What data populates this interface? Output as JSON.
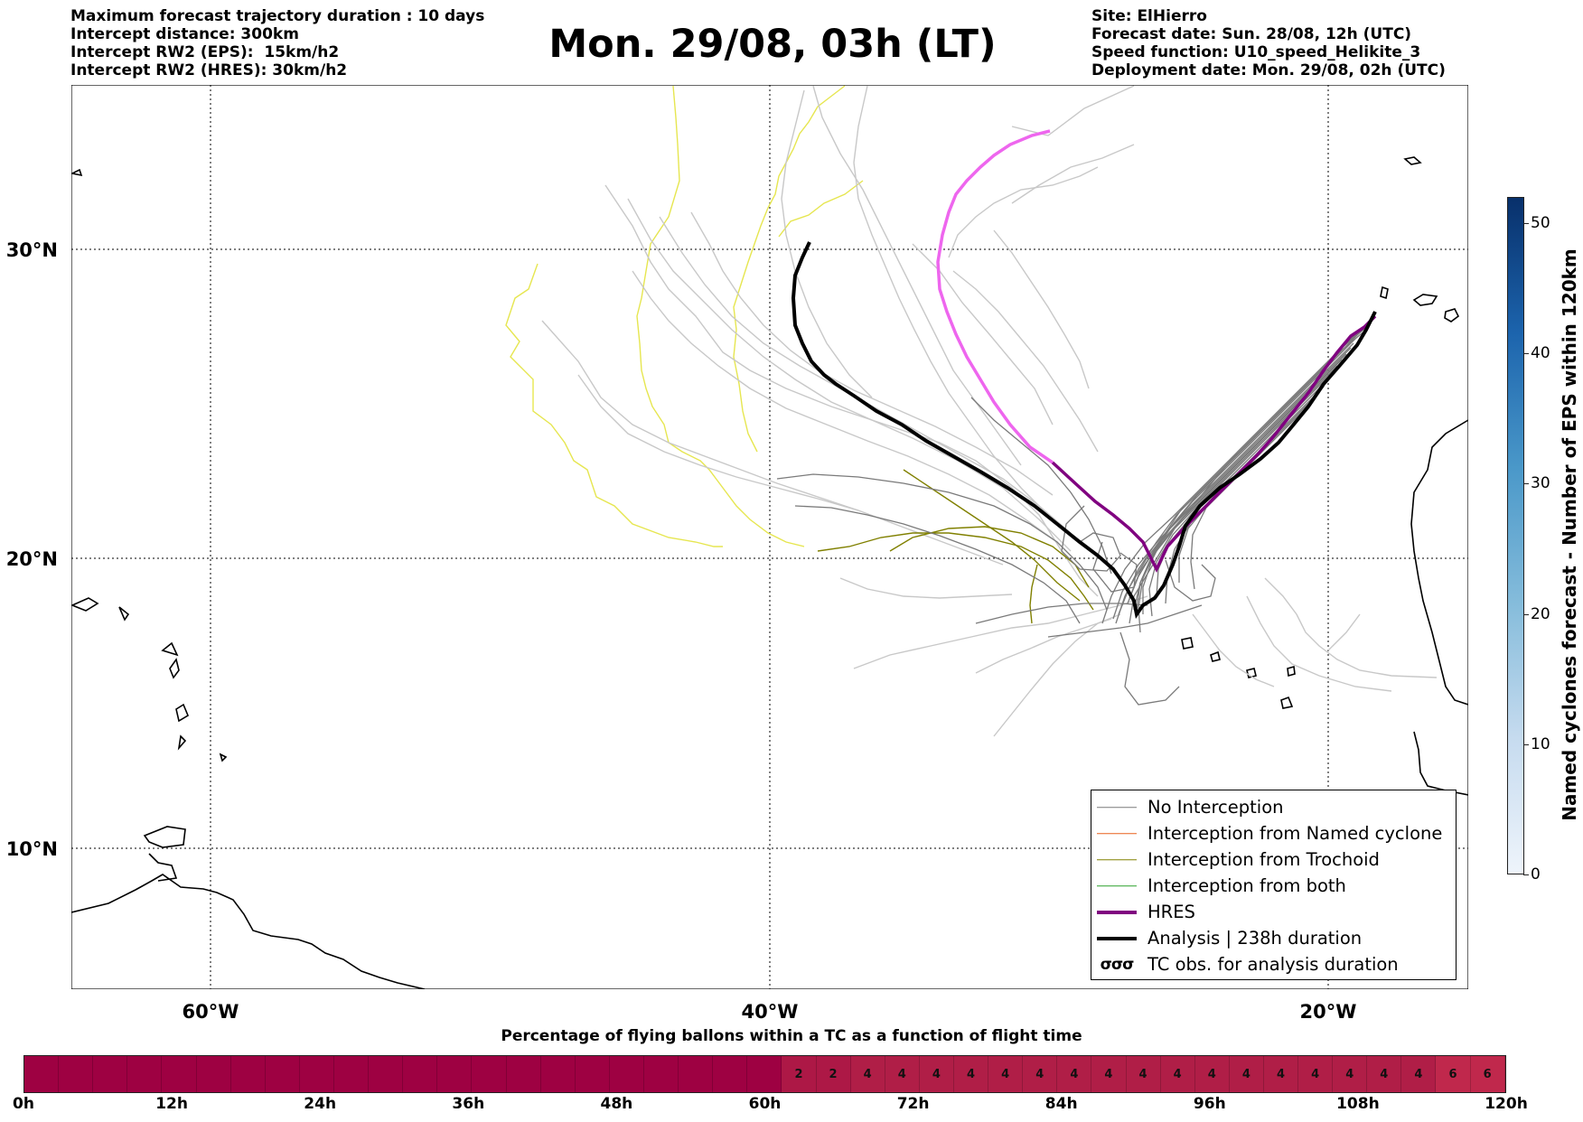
{
  "header": {
    "left_lines": [
      "Maximum forecast trajectory duration : 10 days",
      "Intercept distance: 300km",
      "Intercept RW2 (EPS):  15km/h2",
      "Intercept RW2 (HRES): 30km/h2"
    ],
    "title": "Mon. 29/08, 03h (LT)",
    "right_lines": [
      "Site: ElHierro",
      "Forecast date: Sun. 28/08, 12h (UTC)",
      "Speed function: U10_speed_Helikite_3",
      "Deployment date: Mon. 29/08, 02h (UTC)"
    ]
  },
  "map": {
    "lat_labels": [
      "30°N",
      "20°N",
      "10°N"
    ],
    "lon_labels": [
      "60°W",
      "40°W",
      "20°W"
    ]
  },
  "legend": {
    "items": [
      {
        "label": "No Interception",
        "color": "#7a7a7a",
        "style": "thin"
      },
      {
        "label": "Interception from Named cyclone",
        "color": "#e8601c",
        "style": "thin"
      },
      {
        "label": "Interception from Trochoid",
        "color": "#808000",
        "style": "thin"
      },
      {
        "label": "Interception from both",
        "color": "#2ca02c",
        "style": "thin"
      },
      {
        "label": "HRES",
        "color": "#800080",
        "style": "thick"
      },
      {
        "label": "Analysis | 238h duration",
        "color": "#000000",
        "style": "thick"
      },
      {
        "label": "TC obs. for analysis duration",
        "color": "#000000",
        "style": "symbol",
        "symbol": "σσσ"
      }
    ]
  },
  "colorbar": {
    "label": "Named cyclones forecast - Number of EPS within 120km",
    "ticks": [
      "0",
      "10",
      "20",
      "30",
      "40",
      "50"
    ],
    "tick_values": [
      0,
      10,
      20,
      30,
      40,
      50
    ],
    "max": 52
  },
  "timebar": {
    "title": "Percentage of flying ballons within a TC as a function of flight time",
    "segment_values": [
      "",
      "",
      "",
      "",
      "",
      "",
      "",
      "",
      "",
      "",
      "",
      "",
      "",
      "",
      "",
      "",
      "",
      "",
      "",
      "",
      "",
      "",
      "2",
      "2",
      "4",
      "4",
      "4",
      "4",
      "4",
      "4",
      "4",
      "4",
      "4",
      "4",
      "4",
      "4",
      "4",
      "4",
      "4",
      "4",
      "4",
      "6",
      "6"
    ],
    "tick_labels": [
      "0h",
      "12h",
      "24h",
      "36h",
      "48h",
      "60h",
      "72h",
      "84h",
      "96h",
      "108h",
      "120h"
    ],
    "colors": {
      "zero": "#9e0142",
      "low": "#ad1846",
      "mid": "#b01e47",
      "high": "#c0284c"
    }
  },
  "colors": {
    "no_interception": "#7a7a7a",
    "light_track": "#c8c8c8",
    "yellow_track": "#e6e650",
    "olive_track": "#808000",
    "hres": "#800080",
    "hres_light": "#ee66ee",
    "analysis": "#000000"
  }
}
